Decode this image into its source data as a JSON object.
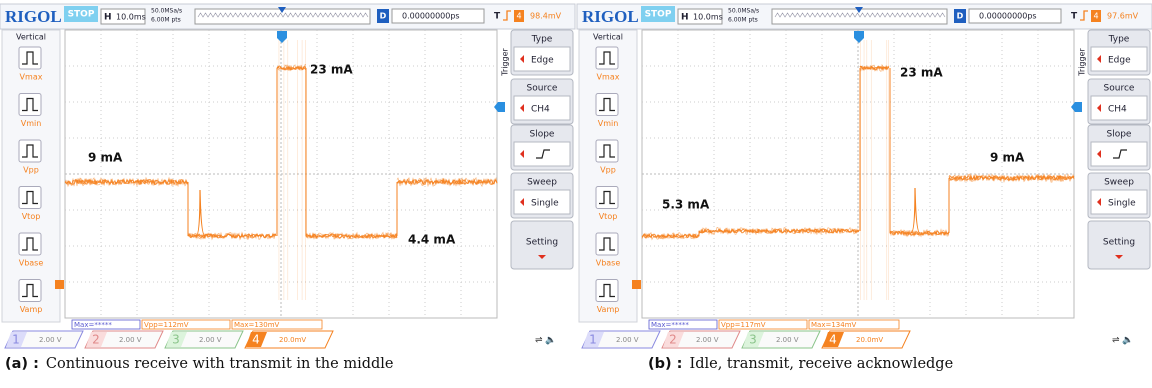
{
  "panels": [
    {
      "header": {
        "logo": "RIGOL",
        "status": "STOP",
        "h_label": "H",
        "timebase": "10.0ms",
        "sample_rate": "50.0MSa/s",
        "points": "6.00M pts",
        "d_label": "D",
        "delay": "0.00000000ps",
        "t_label": "T",
        "trigger_channel": "4",
        "trigger_level": "98.4mV"
      },
      "sidebar": {
        "title": "Vertical",
        "items": [
          "Vmax",
          "Vmin",
          "Vpp",
          "Vtop",
          "Vbase",
          "Vamp"
        ]
      },
      "menu": {
        "side_label": "Trigger",
        "items": [
          {
            "title": "Type",
            "value": "Edge"
          },
          {
            "title": "Source",
            "value": "CH4"
          },
          {
            "title": "Slope"
          },
          {
            "title": "Sweep",
            "value": "Single"
          },
          {
            "title": "Setting"
          }
        ]
      },
      "measurements": [
        "Max=*****",
        "Vpp=112mV",
        "Max=130mV"
      ],
      "channels": [
        {
          "number": "1",
          "scale": "2.00 V"
        },
        {
          "number": "2",
          "scale": "2.00 V"
        },
        {
          "number": "3",
          "scale": "2.00 V"
        },
        {
          "number": "4",
          "scale": "20.0mV"
        }
      ],
      "annotations": [
        "23 mA",
        "9 mA",
        "4.4 mA"
      ],
      "caption": {
        "label": "(a) :",
        "text": "Continuous receive with transmit in the middle"
      }
    },
    {
      "header": {
        "logo": "RIGOL",
        "status": "STOP",
        "h_label": "H",
        "timebase": "10.0ms",
        "sample_rate": "50.0MSa/s",
        "points": "6.00M pts",
        "d_label": "D",
        "delay": "0.00000000ps",
        "t_label": "T",
        "trigger_channel": "4",
        "trigger_level": "97.6mV"
      },
      "sidebar": {
        "title": "Vertical",
        "items": [
          "Vmax",
          "Vmin",
          "Vpp",
          "Vtop",
          "Vbase",
          "Vamp"
        ]
      },
      "menu": {
        "side_label": "Trigger",
        "items": [
          {
            "title": "Type",
            "value": "Edge"
          },
          {
            "title": "Source",
            "value": "CH4"
          },
          {
            "title": "Slope"
          },
          {
            "title": "Sweep",
            "value": "Single"
          },
          {
            "title": "Setting"
          }
        ]
      },
      "measurements": [
        "Max=*****",
        "Vpp=117mV",
        "Max=134mV"
      ],
      "channels": [
        {
          "number": "1",
          "scale": "2.00 V"
        },
        {
          "number": "2",
          "scale": "2.00 V"
        },
        {
          "number": "3",
          "scale": "2.00 V"
        },
        {
          "number": "4",
          "scale": "20.0mV"
        }
      ],
      "annotations": [
        "23 mA",
        "9 mA",
        "5.3 mA"
      ],
      "caption": {
        "label": "(b) :",
        "text": "Idle, transmit, receive acknowledge"
      }
    }
  ]
}
